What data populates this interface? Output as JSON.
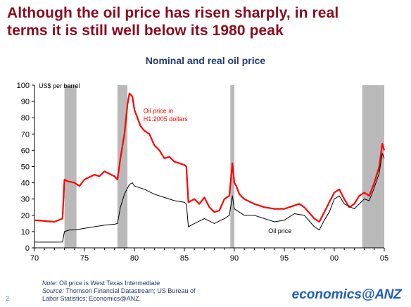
{
  "header": {
    "title_line1": "Although the oil price has risen sharply, in real",
    "title_line2": "terms it is still well below its 1980 peak"
  },
  "chart_data": {
    "type": "line",
    "title": "Nominal and real oil price",
    "ylabel": "US$ per barrel",
    "xlabel": "",
    "xlim": [
      1970,
      2005
    ],
    "ylim": [
      0,
      100
    ],
    "x_tick_values": [
      1970,
      1975,
      1980,
      1985,
      1990,
      1995,
      2000,
      2005
    ],
    "x_tick_labels": [
      "70",
      "75",
      "80",
      "85",
      "90",
      "95",
      "00",
      "05"
    ],
    "y_tick_values": [
      0,
      10,
      20,
      30,
      40,
      50,
      60,
      70,
      80,
      90,
      100
    ],
    "y_tick_labels": [
      "0",
      "10",
      "20",
      "30",
      "40",
      "50",
      "60",
      "70",
      "80",
      "90",
      "100"
    ],
    "grid": false,
    "shaded_periods": [
      [
        1973.0,
        1974.2
      ],
      [
        1978.3,
        1979.3
      ],
      [
        1989.6,
        1990.0
      ],
      [
        2002.8,
        2005.0
      ]
    ],
    "shade_color": "#b9b9b9",
    "series": [
      {
        "name": "Oil price in H1:2005 dollars",
        "color": "#ff0000",
        "x": [
          1970.0,
          1971.0,
          1972.0,
          1972.8,
          1973.0,
          1973.3,
          1974.0,
          1974.5,
          1975.0,
          1976.0,
          1976.5,
          1977.0,
          1978.0,
          1978.3,
          1978.6,
          1979.0,
          1979.3,
          1979.5,
          1979.8,
          1980.0,
          1980.3,
          1980.6,
          1981.0,
          1981.5,
          1982.0,
          1982.5,
          1983.0,
          1983.5,
          1984.0,
          1984.5,
          1985.0,
          1985.2,
          1985.4,
          1986.0,
          1986.5,
          1987.0,
          1987.5,
          1988.0,
          1988.5,
          1989.0,
          1989.5,
          1989.8,
          1990.0,
          1990.2,
          1990.5,
          1991.0,
          1992.0,
          1993.0,
          1994.0,
          1995.0,
          1996.0,
          1996.5,
          1997.0,
          1998.0,
          1998.5,
          1999.0,
          1999.5,
          2000.0,
          2000.5,
          2001.0,
          2001.5,
          2002.0,
          2002.5,
          2003.0,
          2003.5,
          2004.0,
          2004.5,
          2004.8,
          2005.0
        ],
        "values": [
          17,
          16.5,
          16,
          18,
          42,
          41,
          40,
          38,
          42,
          45,
          44,
          47,
          44,
          42,
          55,
          70,
          88,
          95,
          93,
          85,
          80,
          75,
          72,
          70,
          63,
          60,
          55,
          56,
          53,
          52,
          51,
          50,
          28,
          30,
          27,
          31,
          25,
          22,
          23,
          30,
          32,
          52,
          40,
          38,
          33,
          30,
          27,
          25,
          24,
          24,
          26,
          27,
          25,
          18,
          16,
          22,
          28,
          34,
          36,
          30,
          25,
          27,
          32,
          34,
          32,
          40,
          50,
          64,
          60
        ]
      },
      {
        "name": "Oil price",
        "color": "#000000",
        "x": [
          1970.0,
          1972.0,
          1972.8,
          1973.0,
          1973.5,
          1974.0,
          1975.0,
          1976.0,
          1977.0,
          1978.0,
          1978.3,
          1978.6,
          1979.0,
          1979.5,
          1979.8,
          1980.0,
          1981.0,
          1982.0,
          1983.0,
          1984.0,
          1985.0,
          1985.2,
          1985.4,
          1986.0,
          1987.0,
          1988.0,
          1989.0,
          1989.5,
          1989.8,
          1990.0,
          1990.5,
          1991.0,
          1992.0,
          1993.0,
          1994.0,
          1995.0,
          1996.0,
          1997.0,
          1998.0,
          1998.5,
          1999.0,
          1999.5,
          2000.0,
          2000.5,
          2001.0,
          2002.0,
          2002.5,
          2003.0,
          2003.5,
          2004.0,
          2004.5,
          2004.8,
          2005.0
        ],
        "values": [
          3.5,
          3.5,
          3.6,
          10,
          11,
          11,
          12,
          13,
          14,
          14.5,
          15,
          25,
          33,
          39,
          40,
          38,
          36,
          33,
          31,
          29,
          28,
          27,
          13,
          15,
          18,
          15,
          18,
          20,
          32,
          24,
          22,
          20,
          20,
          18,
          16,
          17,
          21,
          20,
          13,
          11,
          17,
          22,
          30,
          32,
          27,
          24,
          27,
          30,
          29,
          37,
          46,
          58,
          55
        ]
      }
    ],
    "annotations": [
      {
        "text_line1": "Oil price in",
        "text_line2": "H1:2005 dollars",
        "color": "#ff0000"
      },
      {
        "text": "Oil price",
        "color": "#000000"
      }
    ]
  },
  "footer": {
    "note_label": "Note:",
    "note_text": " Oil price is West Texas Intermediate",
    "source_label": "Source:",
    "source_text": "  Thomson Financial Datastream; US Bureau of",
    "source_text_line2": "Labor Statistics; Economics@ANZ.",
    "page_number": "2",
    "brand_text": "economics@",
    "brand_mark": "ANZ"
  },
  "colors": {
    "title": "#8b0a1e",
    "chart_title": "#1f3a6e",
    "brand": "#1f5fb8"
  }
}
